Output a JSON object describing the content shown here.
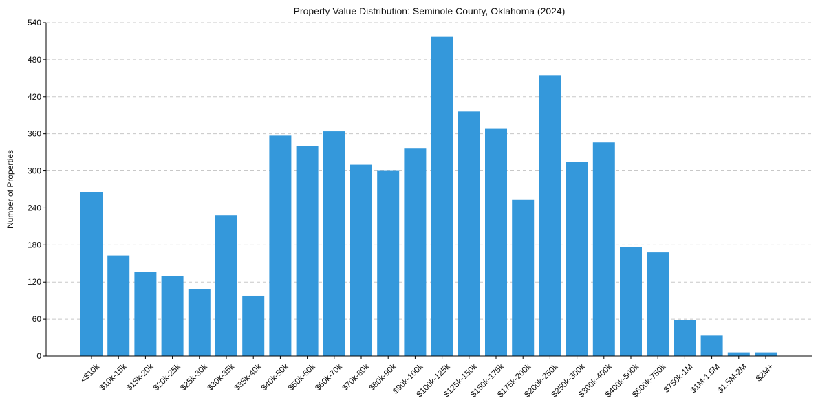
{
  "chart_data": {
    "type": "bar",
    "title": "Property Value Distribution: Seminole County, Oklahoma (2024)",
    "xlabel": "",
    "ylabel": "Number of Properties",
    "ylim": [
      0,
      540
    ],
    "yticks": [
      0,
      60,
      120,
      180,
      240,
      300,
      360,
      420,
      480,
      540
    ],
    "grid": "horizontal-dashed",
    "bar_color": "#3498db",
    "categories": [
      "<$10k",
      "$10k-15k",
      "$15k-20k",
      "$20k-25k",
      "$25k-30k",
      "$30k-35k",
      "$35k-40k",
      "$40k-50k",
      "$50k-60k",
      "$60k-70k",
      "$70k-80k",
      "$80k-90k",
      "$90k-100k",
      "$100k-125k",
      "$125k-150k",
      "$150k-175k",
      "$175k-200k",
      "$200k-250k",
      "$250k-300k",
      "$300k-400k",
      "$400k-500k",
      "$500k-750k",
      "$750k-1M",
      "$1M-1.5M",
      "$1.5M-2M",
      "$2M+"
    ],
    "values": [
      265,
      163,
      136,
      130,
      109,
      228,
      98,
      357,
      340,
      364,
      310,
      300,
      336,
      517,
      396,
      369,
      253,
      455,
      315,
      346,
      177,
      168,
      58,
      33,
      6,
      6
    ]
  }
}
